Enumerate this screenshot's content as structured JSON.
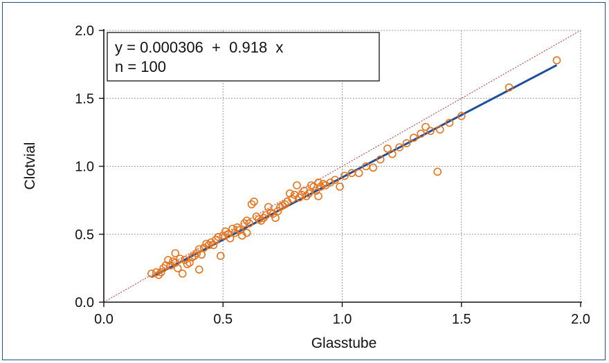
{
  "chart_data": {
    "type": "scatter",
    "xlabel": "Glasstube",
    "ylabel": "Clotvial",
    "xlim": [
      0.0,
      2.0
    ],
    "ylim": [
      0.0,
      2.0
    ],
    "xticks": [
      "0.0",
      "0.5",
      "1.0",
      "1.5",
      "2.0"
    ],
    "yticks": [
      "0.0",
      "0.5",
      "1.0",
      "1.5",
      "2.0"
    ],
    "grid": true,
    "annotation": {
      "line1": "y = 0.000306  +  0.918  x",
      "line2": "n = 100"
    },
    "regression": {
      "intercept": 0.000306,
      "slope": 0.918,
      "x_range": [
        0.2,
        1.9
      ],
      "color": "#1f4e9c"
    },
    "identity_line": {
      "slope": 1,
      "intercept": 0,
      "color": "#c0504d",
      "style": "dotted"
    },
    "marker_color": "#e8731a",
    "points": [
      [
        0.2,
        0.21
      ],
      [
        0.22,
        0.22
      ],
      [
        0.23,
        0.2
      ],
      [
        0.24,
        0.22
      ],
      [
        0.25,
        0.25
      ],
      [
        0.26,
        0.27
      ],
      [
        0.27,
        0.31
      ],
      [
        0.28,
        0.27
      ],
      [
        0.29,
        0.3
      ],
      [
        0.3,
        0.36
      ],
      [
        0.3,
        0.29
      ],
      [
        0.31,
        0.25
      ],
      [
        0.32,
        0.32
      ],
      [
        0.33,
        0.21
      ],
      [
        0.34,
        0.31
      ],
      [
        0.35,
        0.28
      ],
      [
        0.36,
        0.29
      ],
      [
        0.37,
        0.33
      ],
      [
        0.38,
        0.34
      ],
      [
        0.39,
        0.36
      ],
      [
        0.4,
        0.24
      ],
      [
        0.4,
        0.39
      ],
      [
        0.41,
        0.35
      ],
      [
        0.42,
        0.4
      ],
      [
        0.43,
        0.43
      ],
      [
        0.44,
        0.42
      ],
      [
        0.45,
        0.44
      ],
      [
        0.46,
        0.42
      ],
      [
        0.47,
        0.46
      ],
      [
        0.48,
        0.48
      ],
      [
        0.49,
        0.34
      ],
      [
        0.5,
        0.49
      ],
      [
        0.51,
        0.52
      ],
      [
        0.52,
        0.5
      ],
      [
        0.53,
        0.47
      ],
      [
        0.54,
        0.54
      ],
      [
        0.55,
        0.51
      ],
      [
        0.56,
        0.55
      ],
      [
        0.57,
        0.53
      ],
      [
        0.58,
        0.49
      ],
      [
        0.59,
        0.58
      ],
      [
        0.6,
        0.6
      ],
      [
        0.6,
        0.51
      ],
      [
        0.61,
        0.58
      ],
      [
        0.62,
        0.72
      ],
      [
        0.63,
        0.74
      ],
      [
        0.64,
        0.63
      ],
      [
        0.65,
        0.61
      ],
      [
        0.66,
        0.6
      ],
      [
        0.67,
        0.62
      ],
      [
        0.68,
        0.64
      ],
      [
        0.69,
        0.7
      ],
      [
        0.7,
        0.66
      ],
      [
        0.71,
        0.65
      ],
      [
        0.72,
        0.62
      ],
      [
        0.73,
        0.67
      ],
      [
        0.74,
        0.7
      ],
      [
        0.75,
        0.71
      ],
      [
        0.76,
        0.72
      ],
      [
        0.77,
        0.74
      ],
      [
        0.78,
        0.8
      ],
      [
        0.79,
        0.76
      ],
      [
        0.8,
        0.79
      ],
      [
        0.81,
        0.86
      ],
      [
        0.82,
        0.77
      ],
      [
        0.83,
        0.79
      ],
      [
        0.84,
        0.82
      ],
      [
        0.85,
        0.78
      ],
      [
        0.86,
        0.8
      ],
      [
        0.87,
        0.86
      ],
      [
        0.88,
        0.85
      ],
      [
        0.89,
        0.82
      ],
      [
        0.9,
        0.88
      ],
      [
        0.9,
        0.78
      ],
      [
        0.91,
        0.85
      ],
      [
        0.92,
        0.87
      ],
      [
        0.93,
        0.86
      ],
      [
        0.95,
        0.88
      ],
      [
        0.97,
        0.9
      ],
      [
        0.99,
        0.85
      ],
      [
        1.01,
        0.93
      ],
      [
        1.04,
        0.95
      ],
      [
        1.07,
        0.95
      ],
      [
        1.1,
        1.0
      ],
      [
        1.13,
        0.99
      ],
      [
        1.16,
        1.05
      ],
      [
        1.19,
        1.13
      ],
      [
        1.21,
        1.09
      ],
      [
        1.24,
        1.14
      ],
      [
        1.27,
        1.17
      ],
      [
        1.3,
        1.21
      ],
      [
        1.33,
        1.24
      ],
      [
        1.35,
        1.29
      ],
      [
        1.37,
        1.26
      ],
      [
        1.4,
        0.96
      ],
      [
        1.41,
        1.27
      ],
      [
        1.45,
        1.32
      ],
      [
        1.5,
        1.37
      ],
      [
        1.7,
        1.58
      ],
      [
        1.9,
        1.78
      ]
    ]
  }
}
